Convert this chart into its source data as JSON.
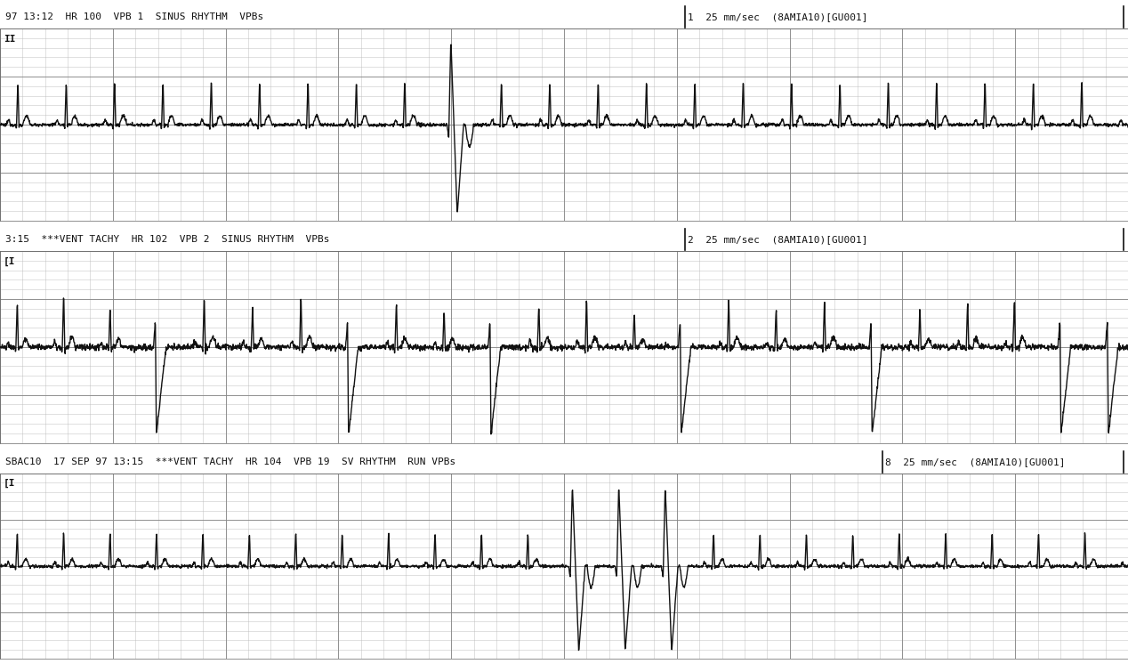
{
  "bg_color": "#ffffff",
  "grid_dot_color": "#bbbbbb",
  "grid_major_color": "#888888",
  "grid_border_color": "#666666",
  "ecg_line_color": "#111111",
  "text_color": "#111111",
  "header1": "97 13:12  HR 100  VPB 1  SINUS RHYTHM  VPBs",
  "header1_right": "1  25 mm/sec  (8AMIA10)[GU001]",
  "header2": "3:15  ***VENT TACHY  HR 102  VPB 2  SINUS RHYTHM  VPBs",
  "header2_right": "2  25 mm/sec  (8AMIA10)[GU001]",
  "header3": "SBAC10  17 SEP 97 13:15  ***VENT TACHY  HR 104  VPB 19  SV RHYTHM  RUN VPBs",
  "header3_right": "8  25 mm/sec  (8AMIA10)[GU001]",
  "lead1": "II",
  "lead2": "[I",
  "lead3": "[I",
  "fig_width": 12.68,
  "fig_height": 7.46
}
